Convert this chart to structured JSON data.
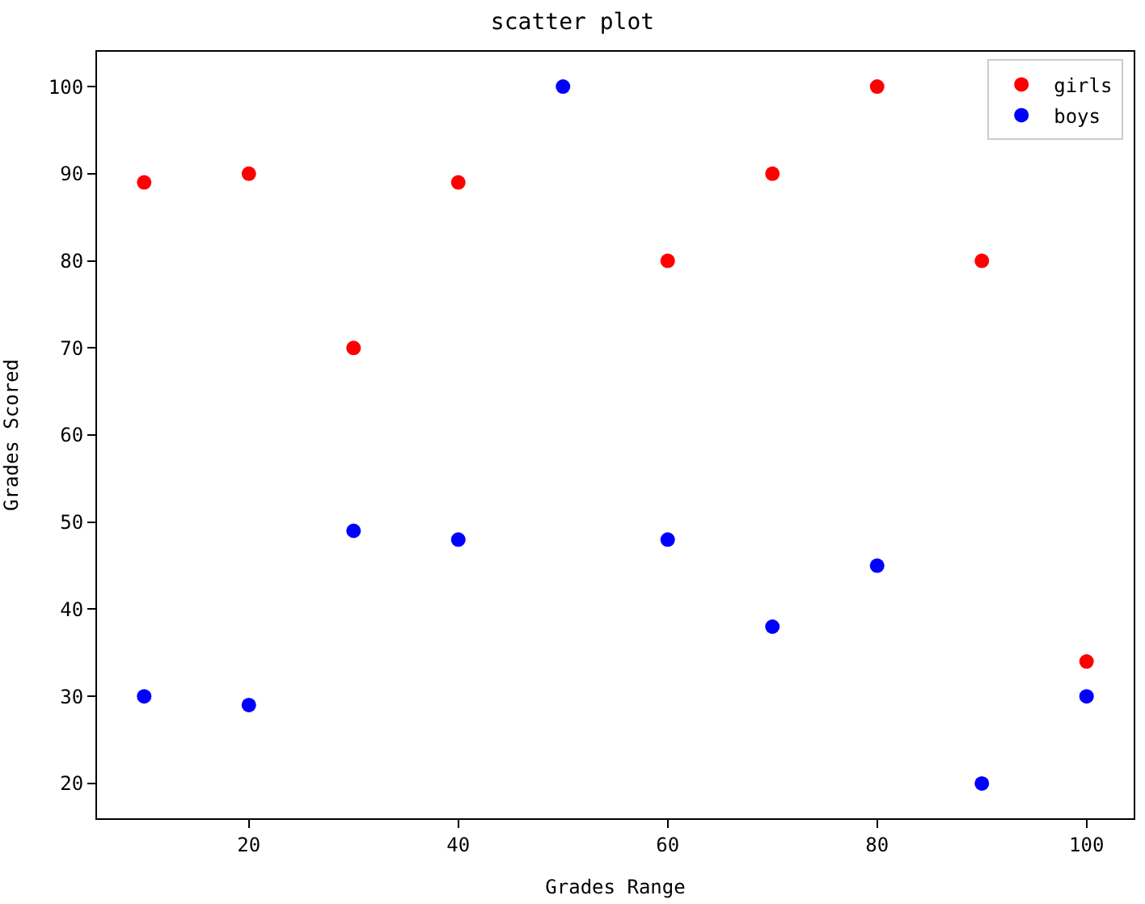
{
  "chart_data": {
    "type": "scatter",
    "title": "scatter plot",
    "xlabel": "Grades Range",
    "ylabel": "Grades Scored",
    "x": [
      10,
      20,
      30,
      40,
      50,
      60,
      70,
      80,
      90,
      100
    ],
    "series": [
      {
        "name": "girls",
        "color": "#ff0000",
        "values": [
          89,
          90,
          70,
          89,
          null,
          80,
          90,
          100,
          80,
          34
        ]
      },
      {
        "name": "boys",
        "color": "#0000ff",
        "values": [
          30,
          29,
          49,
          48,
          100,
          48,
          38,
          45,
          20,
          30
        ]
      }
    ],
    "xlim": [
      5.5,
      104.5
    ],
    "xticks": [
      20,
      40,
      60,
      80,
      100
    ],
    "ylim": [
      16,
      104
    ],
    "yticks": [
      20,
      30,
      40,
      50,
      60,
      70,
      80,
      90,
      100
    ],
    "legend": "top right",
    "marker": "circle"
  }
}
